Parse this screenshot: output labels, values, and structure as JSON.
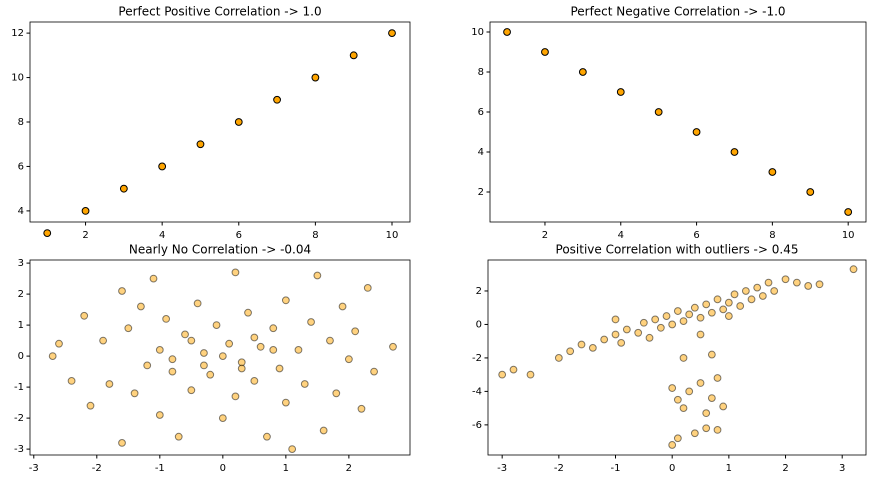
{
  "chart_data": [
    {
      "type": "scatter",
      "title": "Perfect Positive Correlation -> 1.0",
      "x": [
        1,
        2,
        3,
        4,
        5,
        6,
        7,
        8,
        9,
        10
      ],
      "values": [
        3,
        4,
        5,
        6,
        7,
        8,
        9,
        10,
        11,
        12
      ],
      "color": "#ffa500",
      "edgecolor": "#000000",
      "alpha": 1,
      "xlim": [
        0.55,
        10.47
      ],
      "xticks": [
        2,
        4,
        6,
        8,
        10
      ],
      "ylim": [
        3.5,
        12.5
      ],
      "yticks": [
        4,
        6,
        8,
        10,
        12
      ]
    },
    {
      "type": "scatter",
      "title": "Perfect Negative Correlation -> -1.0",
      "x": [
        1,
        2,
        3,
        4,
        5,
        6,
        7,
        8,
        9,
        10
      ],
      "values": [
        10,
        9,
        8,
        7,
        6,
        5,
        4,
        3,
        2,
        1
      ],
      "color": "#ffa500",
      "edgecolor": "#000000",
      "alpha": 1,
      "xlim": [
        0.55,
        10.47
      ],
      "xticks": [
        2,
        4,
        6,
        8,
        10
      ],
      "ylim": [
        0.5,
        10.5
      ],
      "yticks": [
        2,
        4,
        6,
        8,
        10
      ]
    },
    {
      "type": "scatter",
      "title": "Nearly No Correlation -> -0.04",
      "x": [
        -2.7,
        -2.6,
        -2.4,
        -2.2,
        -2.1,
        -1.9,
        -1.8,
        -1.6,
        -1.6,
        -1.5,
        -1.4,
        -1.3,
        -1.2,
        -1.1,
        -1.0,
        -1.0,
        -0.9,
        -0.8,
        -0.7,
        -0.6,
        -0.5,
        -0.4,
        -0.3,
        -0.2,
        -0.1,
        0.0,
        0.1,
        0.2,
        0.2,
        0.3,
        0.4,
        0.5,
        0.6,
        0.7,
        0.8,
        0.9,
        1.0,
        1.0,
        1.1,
        1.2,
        1.3,
        1.4,
        1.5,
        1.6,
        1.7,
        1.8,
        1.9,
        2.0,
        2.1,
        2.2,
        2.3,
        2.4,
        2.7,
        0.0,
        -0.5,
        0.5,
        0.3,
        -0.3,
        0.8,
        -0.8
      ],
      "values": [
        0.0,
        0.4,
        -0.8,
        1.3,
        -1.6,
        0.5,
        -0.9,
        2.1,
        -2.8,
        0.9,
        -1.2,
        1.6,
        -0.3,
        2.5,
        0.2,
        -1.9,
        1.2,
        -0.5,
        -2.6,
        0.7,
        -1.1,
        1.7,
        0.1,
        -0.6,
        1.0,
        -2.0,
        0.4,
        2.7,
        -1.3,
        -0.2,
        1.4,
        -0.8,
        0.3,
        -2.6,
        0.9,
        -0.4,
        1.8,
        -1.5,
        -3.0,
        0.2,
        -0.9,
        1.1,
        2.6,
        -2.4,
        0.5,
        -1.2,
        1.6,
        -0.1,
        0.8,
        -1.7,
        2.2,
        -0.5,
        0.3,
        0.0,
        0.5,
        0.6,
        -0.4,
        -0.3,
        0.2,
        -0.1
      ],
      "color": "#ffa500",
      "edgecolor": "#000000",
      "alpha": 0.5,
      "xlim": [
        -3.06,
        2.97
      ],
      "xticks": [
        -3,
        -2,
        -1,
        0,
        1,
        2
      ],
      "ylim": [
        -3.19,
        3.1
      ],
      "yticks": [
        -3,
        -2,
        -1,
        0,
        1,
        2,
        3
      ]
    },
    {
      "type": "scatter",
      "title": "Positive Correlation with outliers -> 0.45",
      "x": [
        -3.0,
        -2.8,
        -2.5,
        -2.0,
        -1.8,
        -1.6,
        -1.4,
        -1.2,
        -1.0,
        -0.9,
        -0.8,
        -0.6,
        -0.5,
        -0.4,
        -0.3,
        -0.2,
        -0.1,
        0.0,
        0.1,
        0.2,
        0.3,
        0.4,
        0.5,
        0.6,
        0.7,
        0.8,
        0.9,
        1.0,
        1.1,
        1.2,
        1.3,
        1.4,
        1.5,
        1.6,
        1.7,
        1.8,
        2.0,
        2.2,
        2.4,
        2.6,
        3.2,
        -1.0,
        0.5,
        1.0,
        0.0,
        0.1,
        0.2,
        0.0,
        0.1,
        0.3,
        0.5,
        0.6,
        0.7,
        0.8,
        0.9,
        0.6,
        0.4,
        0.8,
        0.2,
        0.7
      ],
      "values": [
        -3.0,
        -2.7,
        -3.0,
        -2.0,
        -1.6,
        -1.2,
        -1.4,
        -0.9,
        -0.6,
        -1.1,
        -0.3,
        -0.5,
        0.1,
        -0.8,
        0.3,
        -0.2,
        0.5,
        0.0,
        0.8,
        0.2,
        0.6,
        1.0,
        0.4,
        1.2,
        0.7,
        1.5,
        0.9,
        1.3,
        1.8,
        1.1,
        2.0,
        1.5,
        2.2,
        1.7,
        2.5,
        2.0,
        2.7,
        2.5,
        2.3,
        2.4,
        3.3,
        0.3,
        -0.6,
        0.5,
        -3.8,
        -4.5,
        -5.0,
        -7.2,
        -6.8,
        -4.0,
        -3.5,
        -5.3,
        -4.4,
        -6.3,
        -4.9,
        -6.2,
        -6.5,
        -3.2,
        -2.0,
        -1.8
      ],
      "color": "#ffa500",
      "edgecolor": "#000000",
      "alpha": 0.5,
      "xlim": [
        -3.25,
        3.42
      ],
      "xticks": [
        -3,
        -2,
        -1,
        0,
        1,
        2,
        3
      ],
      "ylim": [
        -7.8,
        3.85
      ],
      "yticks": [
        -6,
        -4,
        -2,
        0,
        2
      ]
    }
  ]
}
